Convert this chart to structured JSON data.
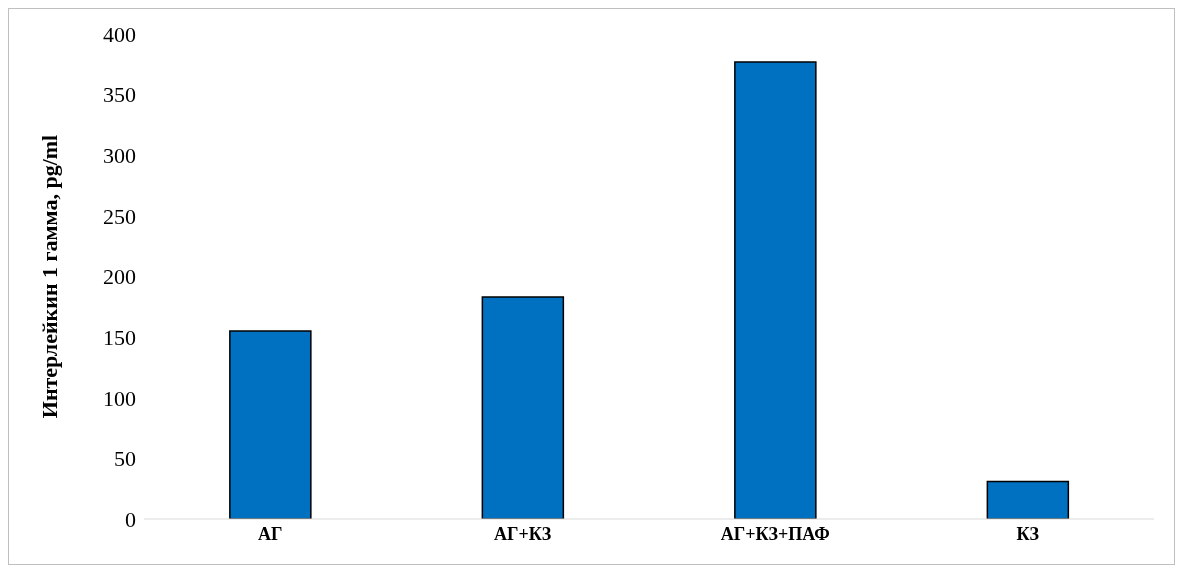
{
  "chart_data": {
    "type": "bar",
    "ylabel": "Интерлейкин 1 гамма, pg/ml",
    "categories": [
      "АГ",
      "АГ+КЗ",
      "АГ+КЗ+ПАФ",
      "КЗ"
    ],
    "values": [
      155,
      183,
      377,
      31
    ],
    "color": "#0070c0",
    "ylim": [
      0,
      400
    ],
    "yticks": [
      0,
      50,
      100,
      150,
      200,
      250,
      300,
      350,
      400
    ],
    "grid": false
  }
}
